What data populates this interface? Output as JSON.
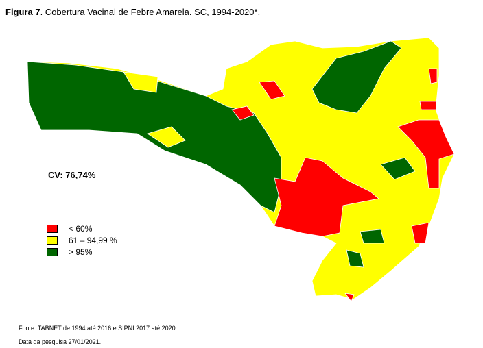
{
  "figure_label": "Figura 7",
  "title": ". Cobertura Vacinal de Febre Amarela. SC, 1994-2020*.",
  "cv_label": "CV: 76,74%",
  "legend": [
    {
      "label": "< 60%",
      "color": "#ff0000"
    },
    {
      "label": "61 – 94,99 %",
      "color": "#ffff00"
    },
    {
      "label": "> 95%",
      "color": "#006600"
    }
  ],
  "source": "Fonte: TABNET de 1994 até 2016 e SIPNI 2017 até 2020.",
  "date_note": "Data da pesquisa 27/01/2021."
}
